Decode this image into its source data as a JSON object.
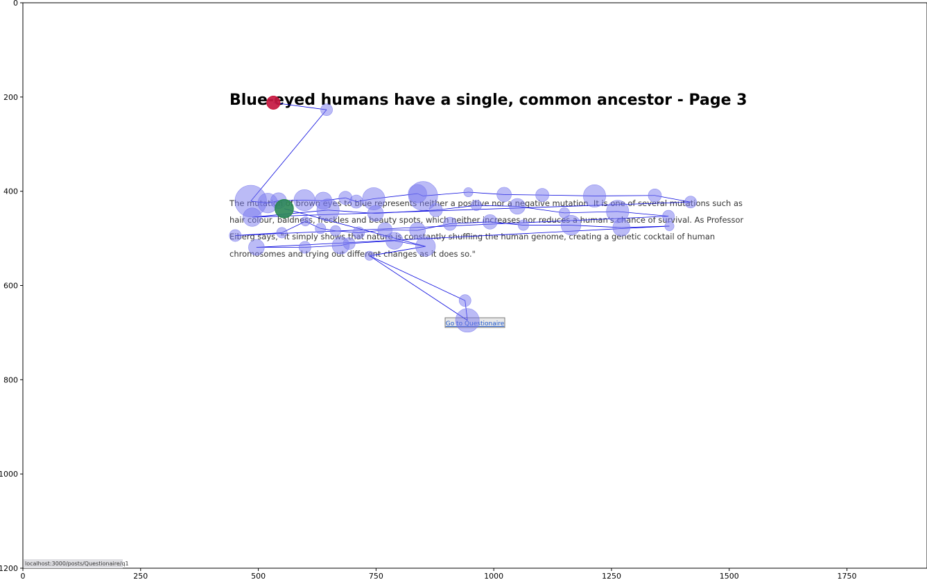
{
  "chart_data": {
    "type": "scatter",
    "title": "",
    "xlabel": "",
    "ylabel": "",
    "xlim": [
      0,
      1920
    ],
    "ylim": [
      1200,
      0
    ],
    "xticks": [
      0,
      250,
      500,
      750,
      1000,
      1250,
      1500,
      1750
    ],
    "yticks": [
      0,
      200,
      400,
      600,
      800,
      1000,
      1200
    ],
    "colors": {
      "fixation": "#7777ee",
      "path": "#0000dd",
      "start": "#cc1133",
      "end": "#228844"
    },
    "page": {
      "title": "Blue-eyed humans have a single, common ancestor - Page 3",
      "paragraph_lines": [
        "The mutation of brown eyes to blue represents neither a positive nor a negative mutation. It is one of several mutations such as",
        "hair colour, baldness, freckles and beauty spots, which neither increases nor reduces a human's chance of survival. As Professor",
        "Eiberg says, \"it simply shows that nature is constantly shuffling the human genome, creating a genetic cocktail of human",
        "chromosomes and trying out different changes as it does so.\""
      ],
      "button_label": "Go to Questionaire",
      "status_url": "localhost:3000/posts/Questionaire/q1"
    },
    "start_point": {
      "x": 532,
      "y": 212,
      "r": 20
    },
    "end_point": {
      "x": 555,
      "y": 437,
      "r": 28
    },
    "fixations": [
      {
        "x": 532,
        "y": 212,
        "r": 20
      },
      {
        "x": 645,
        "y": 227,
        "r": 18
      },
      {
        "x": 484,
        "y": 421,
        "r": 48
      },
      {
        "x": 520,
        "y": 425,
        "r": 30
      },
      {
        "x": 543,
        "y": 420,
        "r": 24
      },
      {
        "x": 598,
        "y": 419,
        "r": 32
      },
      {
        "x": 638,
        "y": 420,
        "r": 26
      },
      {
        "x": 685,
        "y": 414,
        "r": 20
      },
      {
        "x": 708,
        "y": 422,
        "r": 20
      },
      {
        "x": 745,
        "y": 416,
        "r": 34
      },
      {
        "x": 838,
        "y": 405,
        "r": 28
      },
      {
        "x": 850,
        "y": 410,
        "r": 44
      },
      {
        "x": 946,
        "y": 402,
        "r": 14
      },
      {
        "x": 1022,
        "y": 407,
        "r": 22
      },
      {
        "x": 1103,
        "y": 408,
        "r": 20
      },
      {
        "x": 1214,
        "y": 410,
        "r": 34
      },
      {
        "x": 1342,
        "y": 409,
        "r": 20
      },
      {
        "x": 1418,
        "y": 423,
        "r": 18
      },
      {
        "x": 487,
        "y": 455,
        "r": 28
      },
      {
        "x": 555,
        "y": 437,
        "r": 28
      },
      {
        "x": 648,
        "y": 440,
        "r": 34
      },
      {
        "x": 749,
        "y": 447,
        "r": 24
      },
      {
        "x": 877,
        "y": 440,
        "r": 20
      },
      {
        "x": 963,
        "y": 430,
        "r": 16
      },
      {
        "x": 1050,
        "y": 432,
        "r": 24
      },
      {
        "x": 1150,
        "y": 446,
        "r": 16
      },
      {
        "x": 1263,
        "y": 443,
        "r": 34
      },
      {
        "x": 1371,
        "y": 453,
        "r": 18
      },
      {
        "x": 451,
        "y": 494,
        "r": 18
      },
      {
        "x": 550,
        "y": 488,
        "r": 16
      },
      {
        "x": 600,
        "y": 464,
        "r": 14
      },
      {
        "x": 632,
        "y": 479,
        "r": 16
      },
      {
        "x": 664,
        "y": 484,
        "r": 16
      },
      {
        "x": 713,
        "y": 488,
        "r": 18
      },
      {
        "x": 769,
        "y": 482,
        "r": 22
      },
      {
        "x": 838,
        "y": 483,
        "r": 24
      },
      {
        "x": 907,
        "y": 469,
        "r": 20
      },
      {
        "x": 992,
        "y": 465,
        "r": 22
      },
      {
        "x": 1063,
        "y": 472,
        "r": 16
      },
      {
        "x": 1164,
        "y": 472,
        "r": 30
      },
      {
        "x": 1271,
        "y": 477,
        "r": 26
      },
      {
        "x": 1373,
        "y": 474,
        "r": 14
      },
      {
        "x": 496,
        "y": 519,
        "r": 24
      },
      {
        "x": 599,
        "y": 519,
        "r": 18
      },
      {
        "x": 675,
        "y": 515,
        "r": 26
      },
      {
        "x": 693,
        "y": 511,
        "r": 18
      },
      {
        "x": 789,
        "y": 505,
        "r": 26
      },
      {
        "x": 855,
        "y": 517,
        "r": 30
      },
      {
        "x": 736,
        "y": 537,
        "r": 14
      },
      {
        "x": 939,
        "y": 632,
        "r": 18
      },
      {
        "x": 944,
        "y": 674,
        "r": 36
      }
    ],
    "path_order": [
      0,
      1,
      2,
      3,
      4,
      5,
      6,
      7,
      8,
      9,
      10,
      11,
      12,
      13,
      14,
      15,
      16,
      17,
      18,
      20,
      21,
      22,
      23,
      24,
      25,
      26,
      27,
      28,
      29,
      30,
      31,
      32,
      33,
      34,
      35,
      36,
      37,
      38,
      39,
      40,
      41,
      42,
      43,
      44,
      45,
      46,
      47,
      48,
      49,
      50,
      48,
      47,
      19
    ]
  }
}
